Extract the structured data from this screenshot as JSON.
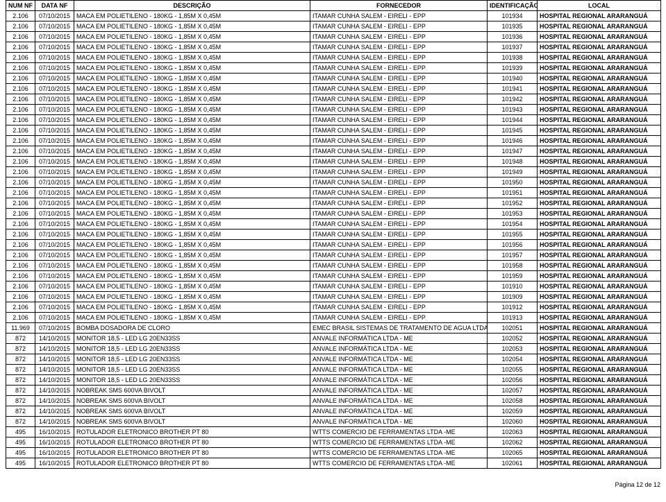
{
  "table": {
    "headers": {
      "num": "NUM NF",
      "data": "DATA NF",
      "desc": "DESCRIÇÃO",
      "forn": "FORNECEDOR",
      "id": "IDENTIFICAÇÃO",
      "local": "LOCAL"
    },
    "rows": [
      {
        "num": "2.106",
        "data": "07/10/2015",
        "desc": "MACA EM POLIETILENO - 180KG - 1,85M X 0,45M",
        "forn": "ITAMAR CUNHA SALEM - EIRELI - EPP",
        "id": "101934",
        "local": "HOSPITAL REGIONAL ARARANGUÁ"
      },
      {
        "num": "2.106",
        "data": "07/10/2015",
        "desc": "MACA EM POLIETILENO - 180KG - 1,85M X 0,45M",
        "forn": "ITAMAR CUNHA SALEM - EIRELI - EPP",
        "id": "101935",
        "local": "HOSPITAL REGIONAL ARARANGUÁ"
      },
      {
        "num": "2.106",
        "data": "07/10/2015",
        "desc": "MACA EM POLIETILENO - 180KG - 1,85M X 0,45M",
        "forn": "ITAMAR CUNHA SALEM - EIRELI - EPP",
        "id": "101936",
        "local": "HOSPITAL REGIONAL ARARANGUÁ"
      },
      {
        "num": "2.106",
        "data": "07/10/2015",
        "desc": "MACA EM POLIETILENO - 180KG - 1,85M X 0,45M",
        "forn": "ITAMAR CUNHA SALEM - EIRELI - EPP",
        "id": "101937",
        "local": "HOSPITAL REGIONAL ARARANGUÁ"
      },
      {
        "num": "2.106",
        "data": "07/10/2015",
        "desc": "MACA EM POLIETILENO - 180KG - 1,85M X 0,45M",
        "forn": "ITAMAR CUNHA SALEM - EIRELI - EPP",
        "id": "101938",
        "local": "HOSPITAL REGIONAL ARARANGUÁ"
      },
      {
        "num": "2.106",
        "data": "07/10/2015",
        "desc": "MACA EM POLIETILENO - 180KG - 1,85M X 0,45M",
        "forn": "ITAMAR CUNHA SALEM - EIRELI - EPP",
        "id": "101939",
        "local": "HOSPITAL REGIONAL ARARANGUÁ"
      },
      {
        "num": "2.106",
        "data": "07/10/2015",
        "desc": "MACA EM POLIETILENO - 180KG - 1,85M X 0,45M",
        "forn": "ITAMAR CUNHA SALEM - EIRELI - EPP",
        "id": "101940",
        "local": "HOSPITAL REGIONAL ARARANGUÁ"
      },
      {
        "num": "2.106",
        "data": "07/10/2015",
        "desc": "MACA EM POLIETILENO - 180KG - 1,85M X 0,45M",
        "forn": "ITAMAR CUNHA SALEM - EIRELI - EPP",
        "id": "101941",
        "local": "HOSPITAL REGIONAL ARARANGUÁ"
      },
      {
        "num": "2.106",
        "data": "07/10/2015",
        "desc": "MACA EM POLIETILENO - 180KG - 1,85M X 0,45M",
        "forn": "ITAMAR CUNHA SALEM - EIRELI - EPP",
        "id": "101942",
        "local": "HOSPITAL REGIONAL ARARANGUÁ"
      },
      {
        "num": "2.106",
        "data": "07/10/2015",
        "desc": "MACA EM POLIETILENO - 180KG - 1,85M X 0,45M",
        "forn": "ITAMAR CUNHA SALEM - EIRELI - EPP",
        "id": "101943",
        "local": "HOSPITAL REGIONAL ARARANGUÁ"
      },
      {
        "num": "2.106",
        "data": "07/10/2015",
        "desc": "MACA EM POLIETILENO - 180KG - 1,85M X 0,45M",
        "forn": "ITAMAR CUNHA SALEM - EIRELI - EPP",
        "id": "101944",
        "local": "HOSPITAL REGIONAL ARARANGUÁ"
      },
      {
        "num": "2.106",
        "data": "07/10/2015",
        "desc": "MACA EM POLIETILENO - 180KG - 1,85M X 0,45M",
        "forn": "ITAMAR CUNHA SALEM - EIRELI - EPP",
        "id": "101945",
        "local": "HOSPITAL REGIONAL ARARANGUÁ"
      },
      {
        "num": "2.106",
        "data": "07/10/2015",
        "desc": "MACA EM POLIETILENO - 180KG - 1,85M X 0,45M",
        "forn": "ITAMAR CUNHA SALEM - EIRELI - EPP",
        "id": "101946",
        "local": "HOSPITAL REGIONAL ARARANGUÁ"
      },
      {
        "num": "2.106",
        "data": "07/10/2015",
        "desc": "MACA EM POLIETILENO - 180KG - 1,85M X 0,45M",
        "forn": "ITAMAR CUNHA SALEM - EIRELI - EPP",
        "id": "101947",
        "local": "HOSPITAL REGIONAL ARARANGUÁ"
      },
      {
        "num": "2.106",
        "data": "07/10/2015",
        "desc": "MACA EM POLIETILENO - 180KG - 1,85M X 0,45M",
        "forn": "ITAMAR CUNHA SALEM - EIRELI - EPP",
        "id": "101948",
        "local": "HOSPITAL REGIONAL ARARANGUÁ"
      },
      {
        "num": "2.106",
        "data": "07/10/2015",
        "desc": "MACA EM POLIETILENO - 180KG - 1,85M X 0,45M",
        "forn": "ITAMAR CUNHA SALEM - EIRELI - EPP",
        "id": "101949",
        "local": "HOSPITAL REGIONAL ARARANGUÁ"
      },
      {
        "num": "2.106",
        "data": "07/10/2015",
        "desc": "MACA EM POLIETILENO - 180KG - 1,85M X 0,45M",
        "forn": "ITAMAR CUNHA SALEM - EIRELI - EPP",
        "id": "101950",
        "local": "HOSPITAL REGIONAL ARARANGUÁ"
      },
      {
        "num": "2.106",
        "data": "07/10/2015",
        "desc": "MACA EM POLIETILENO - 180KG - 1,85M X 0,45M",
        "forn": "ITAMAR CUNHA SALEM - EIRELI - EPP",
        "id": "101951",
        "local": "HOSPITAL REGIONAL ARARANGUÁ"
      },
      {
        "num": "2.106",
        "data": "07/10/2015",
        "desc": "MACA EM POLIETILENO - 180KG - 1,85M X 0,45M",
        "forn": "ITAMAR CUNHA SALEM - EIRELI - EPP",
        "id": "101952",
        "local": "HOSPITAL REGIONAL ARARANGUÁ"
      },
      {
        "num": "2.106",
        "data": "07/10/2015",
        "desc": "MACA EM POLIETILENO - 180KG - 1,85M X 0,45M",
        "forn": "ITAMAR CUNHA SALEM - EIRELI - EPP",
        "id": "101953",
        "local": "HOSPITAL REGIONAL ARARANGUÁ"
      },
      {
        "num": "2.106",
        "data": "07/10/2015",
        "desc": "MACA EM POLIETILENO - 180KG - 1,85M X 0,45M",
        "forn": "ITAMAR CUNHA SALEM - EIRELI - EPP",
        "id": "101954",
        "local": "HOSPITAL REGIONAL ARARANGUÁ"
      },
      {
        "num": "2.106",
        "data": "07/10/2015",
        "desc": "MACA EM POLIETILENO - 180KG - 1,85M X 0,45M",
        "forn": "ITAMAR CUNHA SALEM - EIRELI - EPP",
        "id": "101955",
        "local": "HOSPITAL REGIONAL ARARANGUÁ"
      },
      {
        "num": "2.106",
        "data": "07/10/2015",
        "desc": "MACA EM POLIETILENO - 180KG - 1,85M X 0,45M",
        "forn": "ITAMAR CUNHA SALEM - EIRELI - EPP",
        "id": "101956",
        "local": "HOSPITAL REGIONAL ARARANGUÁ"
      },
      {
        "num": "2.106",
        "data": "07/10/2015",
        "desc": "MACA EM POLIETILENO - 180KG - 1,85M X 0,45M",
        "forn": "ITAMAR CUNHA SALEM - EIRELI - EPP",
        "id": "101957",
        "local": "HOSPITAL REGIONAL ARARANGUÁ"
      },
      {
        "num": "2.106",
        "data": "07/10/2015",
        "desc": "MACA EM POLIETILENO - 180KG - 1,85M X 0,45M",
        "forn": "ITAMAR CUNHA SALEM - EIRELI - EPP",
        "id": "101958",
        "local": "HOSPITAL REGIONAL ARARANGUÁ"
      },
      {
        "num": "2.106",
        "data": "07/10/2015",
        "desc": "MACA EM POLIETILENO - 180KG - 1,85M X 0,45M",
        "forn": "ITAMAR CUNHA SALEM - EIRELI - EPP",
        "id": "101959",
        "local": "HOSPITAL REGIONAL ARARANGUÁ"
      },
      {
        "num": "2.106",
        "data": "07/10/2015",
        "desc": "MACA EM POLIETILENO - 180KG - 1,85M X 0,45M",
        "forn": "ITAMAR CUNHA SALEM - EIRELI - EPP",
        "id": "101910",
        "local": "HOSPITAL REGIONAL ARARANGUÁ"
      },
      {
        "num": "2.106",
        "data": "07/10/2015",
        "desc": "MACA EM POLIETILENO - 180KG - 1,85M X 0,45M",
        "forn": "ITAMAR CUNHA SALEM - EIRELI - EPP",
        "id": "101909",
        "local": "HOSPITAL REGIONAL ARARANGUÁ"
      },
      {
        "num": "2.106",
        "data": "07/10/2015",
        "desc": "MACA EM POLIETILENO - 180KG - 1,85M X 0,45M",
        "forn": "ITAMAR CUNHA SALEM - EIRELI - EPP",
        "id": "101912",
        "local": "HOSPITAL REGIONAL ARARANGUÁ"
      },
      {
        "num": "2.106",
        "data": "07/10/2015",
        "desc": "MACA EM POLIETILENO - 180KG - 1,85M X 0,45M",
        "forn": "ITAMAR CUNHA SALEM - EIRELI - EPP",
        "id": "101913",
        "local": "HOSPITAL REGIONAL ARARANGUÁ"
      },
      {
        "num": "11.969",
        "data": "07/10/2015",
        "desc": "BOMBA DOSADORA DE CLORO",
        "forn": "EMEC BRASIL SISTEMAS DE TRATAMENTO DE AGUA LTDA",
        "id": "102051",
        "local": "HOSPITAL REGIONAL ARARANGUÁ"
      },
      {
        "num": "872",
        "data": "14/10/2015",
        "desc": "MONITOR 18,5 - LED LG 20EN33SS",
        "forn": "ANVALE INFORMÁTICA LTDA - ME",
        "id": "102052",
        "local": "HOSPITAL REGIONAL ARARANGUÁ"
      },
      {
        "num": "872",
        "data": "14/10/2015",
        "desc": "MONITOR 18,5 - LED LG 20EN33SS",
        "forn": "ANVALE INFORMÁTICA LTDA - ME",
        "id": "102053",
        "local": "HOSPITAL REGIONAL ARARANGUÁ"
      },
      {
        "num": "872",
        "data": "14/10/2015",
        "desc": "MONITOR 18,5 - LED LG 20EN33SS",
        "forn": "ANVALE INFORMÁTICA LTDA - ME",
        "id": "102054",
        "local": "HOSPITAL REGIONAL ARARANGUÁ"
      },
      {
        "num": "872",
        "data": "14/10/2015",
        "desc": "MONITOR 18,5 - LED LG 20EN33SS",
        "forn": "ANVALE INFORMÁTICA LTDA - ME",
        "id": "102055",
        "local": "HOSPITAL REGIONAL ARARANGUÁ"
      },
      {
        "num": "872",
        "data": "14/10/2015",
        "desc": "MONITOR 18,5 - LED LG 20EN33SS",
        "forn": "ANVALE INFORMÁTICA LTDA - ME",
        "id": "102056",
        "local": "HOSPITAL REGIONAL ARARANGUÁ"
      },
      {
        "num": "872",
        "data": "14/10/2015",
        "desc": "NOBREAK SMS 600VA BIVOLT",
        "forn": "ANVALE INFORMÁTICA LTDA - ME",
        "id": "102057",
        "local": "HOSPITAL REGIONAL ARARANGUÁ"
      },
      {
        "num": "872",
        "data": "14/10/2015",
        "desc": "NOBREAK SMS 600VA BIVOLT",
        "forn": "ANVALE INFORMÁTICA LTDA - ME",
        "id": "102058",
        "local": "HOSPITAL REGIONAL ARARANGUÁ"
      },
      {
        "num": "872",
        "data": "14/10/2015",
        "desc": "NOBREAK SMS 600VA BIVOLT",
        "forn": "ANVALE INFORMÁTICA LTDA - ME",
        "id": "102059",
        "local": "HOSPITAL REGIONAL ARARANGUÁ"
      },
      {
        "num": "872",
        "data": "14/10/2015",
        "desc": "NOBREAK SMS 600VA BIVOLT",
        "forn": "ANVALE INFORMÁTICA LTDA - ME",
        "id": "102060",
        "local": "HOSPITAL REGIONAL ARARANGUÁ"
      },
      {
        "num": "495",
        "data": "16/10/2015",
        "desc": "ROTULADOR ELETRONICO BROTHER PT 80",
        "forn": "WTTS COMERCIO DE FERRAMENTAS LTDA -ME",
        "id": "102063",
        "local": "HOSPITAL REGIONAL ARARANGUÁ"
      },
      {
        "num": "495",
        "data": "16/10/2015",
        "desc": "ROTULADOR ELETRONICO BROTHER PT 80",
        "forn": "WTTS COMERCIO DE FERRAMENTAS LTDA -ME",
        "id": "102062",
        "local": "HOSPITAL REGIONAL ARARANGUÁ"
      },
      {
        "num": "495",
        "data": "16/10/2015",
        "desc": "ROTULADOR ELETRONICO BROTHER PT 80",
        "forn": "WTTS COMERCIO DE FERRAMENTAS LTDA -ME",
        "id": "102065",
        "local": "HOSPITAL REGIONAL ARARANGUÁ"
      },
      {
        "num": "495",
        "data": "16/10/2015",
        "desc": "ROTULADOR ELETRONICO BROTHER PT 80",
        "forn": "WTTS COMERCIO DE FERRAMENTAS LTDA -ME",
        "id": "102061",
        "local": "HOSPITAL REGIONAL ARARANGUÁ"
      }
    ]
  },
  "footer": "Página 12 de 12"
}
